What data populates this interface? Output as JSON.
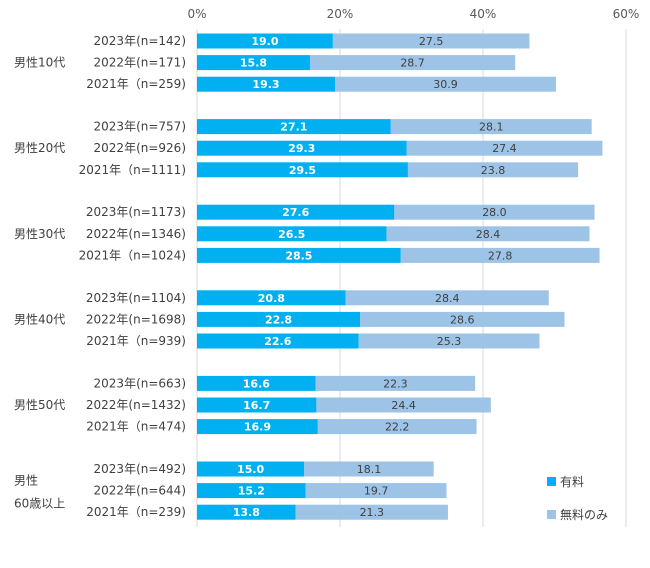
{
  "chart_data": {
    "type": "bar",
    "orientation": "horizontal",
    "stacked": true,
    "x_ticks": [
      "0%",
      "20%",
      "40%",
      "60%"
    ],
    "xlim": [
      0,
      60
    ],
    "grid": "vertical",
    "legend_position": "bottom-right",
    "colors": {
      "paid": "#00B0F0",
      "free": "#9DC3E6",
      "grid": "#D9D9D9"
    },
    "series": [
      {
        "key": "paid",
        "name": "有料"
      },
      {
        "key": "free",
        "name": "無料のみ"
      }
    ],
    "groups": [
      {
        "label": "男性10代",
        "label_lines": [
          "男性10代"
        ],
        "rows": [
          {
            "label": "2023年(n=142)",
            "paid": 19.0,
            "free": 27.5,
            "paid_text": "19.0",
            "free_text": "27.5"
          },
          {
            "label": "2022年(n=171)",
            "paid": 15.8,
            "free": 28.7,
            "paid_text": "15.8",
            "free_text": "28.7"
          },
          {
            "label": "2021年（n=259)",
            "paid": 19.3,
            "free": 30.9,
            "paid_text": "19.3",
            "free_text": "30.9"
          }
        ]
      },
      {
        "label": "男性20代",
        "label_lines": [
          "男性20代"
        ],
        "rows": [
          {
            "label": "2023年(n=757)",
            "paid": 27.1,
            "free": 28.1,
            "paid_text": "27.1",
            "free_text": "28.1"
          },
          {
            "label": "2022年(n=926)",
            "paid": 29.3,
            "free": 27.4,
            "paid_text": "29.3",
            "free_text": "27.4"
          },
          {
            "label": "2021年（n=1111)",
            "paid": 29.5,
            "free": 23.8,
            "paid_text": "29.5",
            "free_text": "23.8"
          }
        ]
      },
      {
        "label": "男性30代",
        "label_lines": [
          "男性30代"
        ],
        "rows": [
          {
            "label": "2023年(n=1173)",
            "paid": 27.6,
            "free": 28.0,
            "paid_text": "27.6",
            "free_text": "28.0"
          },
          {
            "label": "2022年(n=1346)",
            "paid": 26.5,
            "free": 28.4,
            "paid_text": "26.5",
            "free_text": "28.4"
          },
          {
            "label": "2021年（n=1024)",
            "paid": 28.5,
            "free": 27.8,
            "paid_text": "28.5",
            "free_text": "27.8"
          }
        ]
      },
      {
        "label": "男性40代",
        "label_lines": [
          "男性40代"
        ],
        "rows": [
          {
            "label": "2023年(n=1104)",
            "paid": 20.8,
            "free": 28.4,
            "paid_text": "20.8",
            "free_text": "28.4"
          },
          {
            "label": "2022年(n=1698)",
            "paid": 22.8,
            "free": 28.6,
            "paid_text": "22.8",
            "free_text": "28.6"
          },
          {
            "label": "2021年（n=939)",
            "paid": 22.6,
            "free": 25.3,
            "paid_text": "22.6",
            "free_text": "25.3"
          }
        ]
      },
      {
        "label": "男性50代",
        "label_lines": [
          "男性50代"
        ],
        "rows": [
          {
            "label": "2023年(n=663)",
            "paid": 16.6,
            "free": 22.3,
            "paid_text": "16.6",
            "free_text": "22.3"
          },
          {
            "label": "2022年(n=1432)",
            "paid": 16.7,
            "free": 24.4,
            "paid_text": "16.7",
            "free_text": "24.4"
          },
          {
            "label": "2021年（n=474)",
            "paid": 16.9,
            "free": 22.2,
            "paid_text": "16.9",
            "free_text": "22.2"
          }
        ]
      },
      {
        "label": "男性60歳以上",
        "label_lines": [
          "男性",
          "60歳以上"
        ],
        "rows": [
          {
            "label": "2023年(n=492)",
            "paid": 15.0,
            "free": 18.1,
            "paid_text": "15.0",
            "free_text": "18.1"
          },
          {
            "label": "2022年(n=644)",
            "paid": 15.2,
            "free": 19.7,
            "paid_text": "15.2",
            "free_text": "19.7"
          },
          {
            "label": "2021年（n=239)",
            "paid": 13.8,
            "free": 21.3,
            "paid_text": "13.8",
            "free_text": "21.3"
          }
        ]
      }
    ]
  }
}
